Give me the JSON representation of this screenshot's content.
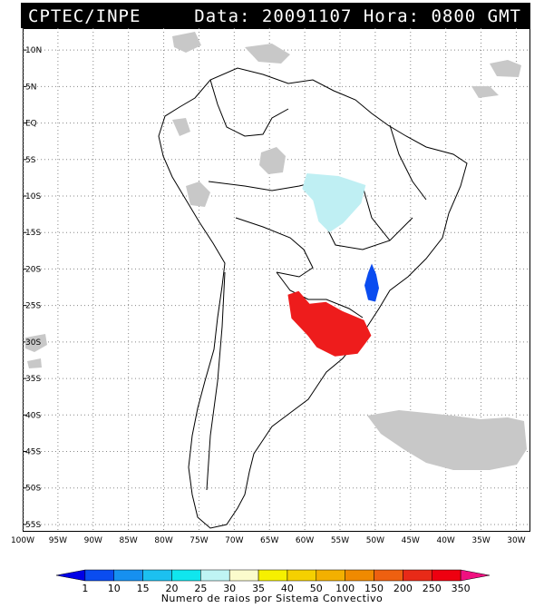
{
  "header": {
    "source": "CPTEC/INPE",
    "datetime": "Data: 20091107 Hora: 0800 GMT",
    "background": "#000000",
    "text_color": "#ffffff"
  },
  "map": {
    "region": "South America",
    "lon_range": [
      -100,
      -28
    ],
    "lat_range": [
      -56,
      13
    ],
    "grid": "dotted",
    "lat_ticks": [
      "10N",
      "5N",
      "EQ",
      "5S",
      "10S",
      "15S",
      "20S",
      "25S",
      "30S",
      "35S",
      "40S",
      "45S",
      "50S",
      "55S"
    ],
    "lon_ticks": [
      "100W",
      "95W",
      "90W",
      "85W",
      "80W",
      "75W",
      "70W",
      "65W",
      "60W",
      "55W",
      "50W",
      "45W",
      "40W",
      "35W",
      "30W"
    ],
    "cloud_color": "#c8c8c8",
    "systems": [
      {
        "name": "convective-system-large",
        "lon": -57,
        "lat": -28.5,
        "category": "250-350",
        "color": "#ee1c1c"
      },
      {
        "name": "convective-system-small",
        "lon": -50.5,
        "lat": -22,
        "category": "10-15",
        "color": "#0a4cf0"
      },
      {
        "name": "convective-system-amazon",
        "lon": -56.5,
        "lat": -10,
        "category": "25-30",
        "color": "#bfeff3"
      }
    ]
  },
  "colorbar": {
    "labels": [
      "1",
      "10",
      "15",
      "20",
      "25",
      "30",
      "35",
      "40",
      "50",
      "100",
      "150",
      "200",
      "250",
      "350"
    ],
    "colors": [
      "#0000e6",
      "#0a4cf0",
      "#1690f0",
      "#1cc0f0",
      "#10e6ee",
      "#bff4f4",
      "#fbfbcc",
      "#f6f000",
      "#f5d000",
      "#f3b000",
      "#f08a00",
      "#ee6010",
      "#e82a18",
      "#ee0010",
      "#f01080"
    ],
    "title": "Numero de raios por Sistema Convectivo"
  }
}
